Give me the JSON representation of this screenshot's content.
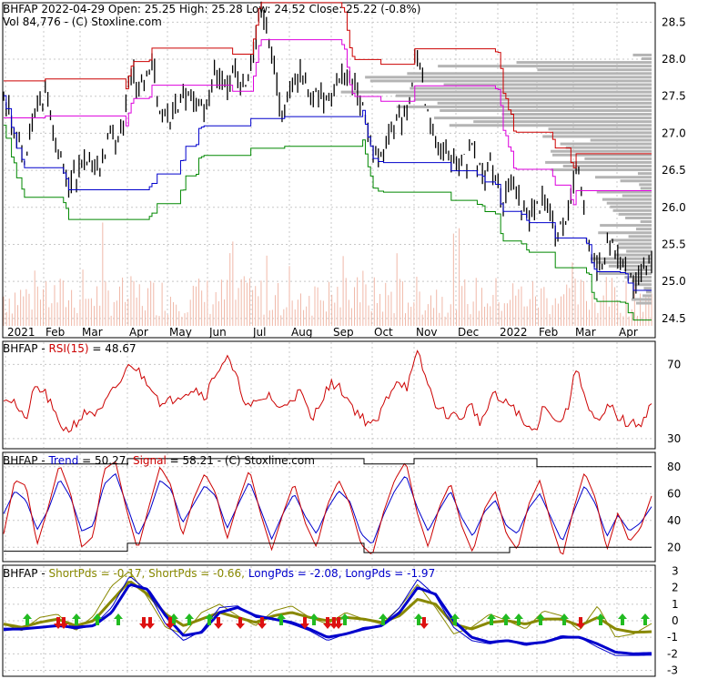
{
  "header": {
    "line1": "BHFAP  2022-04-29 Open: 25.25  High: 25.28  Low: 24.52  Close: 25.22 (-0.8%)",
    "line2": "Vol 84,776   - (C) Stoxline.com"
  },
  "colors": {
    "price": "#000000",
    "volume": "#f0b8a8",
    "profile": "#b4b4b4",
    "red": "#cc0000",
    "magenta": "#dd00dd",
    "blue": "#0000cc",
    "green": "#008800",
    "olive": "#888800",
    "grid": "#c8c8c8"
  },
  "panels": {
    "rsi": {
      "label_prefix": "BHFAP  - ",
      "label_name": "RSI(15)",
      "label_value": " = 48.67"
    },
    "trend": {
      "label_prefix": "BHFAP  - ",
      "trend_label": "Trend",
      "trend_value": " = 50.27, ",
      "signal_label": "Signal",
      "signal_value": " = 58.21",
      "suffix": "  - (C) Stoxline.com"
    },
    "pds": {
      "label_prefix": "BHFAP  - ",
      "items": [
        {
          "text": "ShortPds = -0.17, ",
          "color": "#888800"
        },
        {
          "text": "ShortPds = -0.66, ",
          "color": "#888800"
        },
        {
          "text": "LongPds = -2.08, ",
          "color": "#0000cc"
        },
        {
          "text": "LongPds = -1.97",
          "color": "#0000cc"
        }
      ]
    }
  },
  "chart_data": [
    {
      "type": "candlestick",
      "title": "BHFAP",
      "x_labels": [
        "2021",
        "Feb",
        "Mar",
        "Apr",
        "May",
        "Jun",
        "Jul",
        "Aug",
        "Sep",
        "Oct",
        "Nov",
        "Dec",
        "2022",
        "Feb",
        "Mar",
        "Apr"
      ],
      "y_ticks": [
        24.5,
        25.0,
        25.5,
        26.0,
        26.5,
        27.0,
        27.5,
        28.0,
        28.5
      ],
      "ylim": [
        24.4,
        28.75
      ],
      "close_series": [
        27.6,
        27.0,
        26.6,
        27.3,
        27.5,
        26.8,
        26.3,
        26.5,
        26.7,
        26.6,
        26.9,
        27.0,
        27.8,
        27.6,
        27.9,
        27.1,
        27.3,
        27.6,
        27.4,
        27.3,
        27.9,
        27.6,
        27.8,
        27.7,
        28.6,
        28.3,
        27.3,
        27.6,
        27.8,
        27.4,
        27.5,
        27.6,
        27.9,
        27.7,
        27.3,
        26.7,
        26.8,
        27.2,
        27.3,
        28.1,
        27.2,
        26.8,
        26.6,
        26.5,
        26.8,
        26.4,
        26.6,
        26.1,
        26.3,
        26.0,
        25.9,
        26.2,
        25.6,
        25.9,
        26.7,
        25.5,
        25.1,
        25.6,
        25.3,
        25.0,
        25.1,
        25.22
      ],
      "grid": true
    },
    {
      "type": "line",
      "title": "RSI(15)",
      "y_ticks": [
        30,
        70
      ],
      "ylim": [
        25,
        82
      ],
      "series": [
        {
          "name": "RSI(15)",
          "values": [
            53,
            50,
            39,
            58,
            54,
            40,
            34,
            40,
            45,
            43,
            53,
            61,
            71,
            64,
            58,
            47,
            52,
            55,
            57,
            53,
            66,
            74,
            61,
            47,
            49,
            54,
            45,
            52,
            55,
            39,
            53,
            60,
            55,
            46,
            40,
            37,
            51,
            62,
            58,
            76,
            58,
            45,
            43,
            41,
            48,
            38,
            54,
            49,
            48,
            37,
            34,
            50,
            38,
            44,
            70,
            46,
            37,
            48,
            41,
            37,
            39,
            48.67
          ]
        }
      ]
    },
    {
      "type": "line",
      "title": "Trend / Signal",
      "y_ticks": [
        20,
        40,
        60,
        80
      ],
      "ylim": [
        10,
        90
      ],
      "series": [
        {
          "name": "Trend",
          "values": [
            45,
            62,
            55,
            33,
            48,
            71,
            57,
            32,
            36,
            67,
            75,
            52,
            28,
            45,
            70,
            63,
            38,
            52,
            66,
            58,
            34,
            52,
            69,
            48,
            26,
            45,
            60,
            43,
            30,
            49,
            62,
            54,
            30,
            22,
            44,
            62,
            74,
            50,
            32,
            48,
            62,
            42,
            28,
            46,
            55,
            36,
            30,
            49,
            60,
            42,
            24,
            46,
            66,
            52,
            28,
            44,
            32,
            38,
            50.27
          ]
        },
        {
          "name": "Signal",
          "values": [
            30,
            70,
            66,
            22,
            50,
            82,
            60,
            20,
            28,
            78,
            84,
            48,
            18,
            50,
            80,
            66,
            28,
            56,
            75,
            60,
            26,
            54,
            78,
            45,
            18,
            45,
            68,
            38,
            20,
            52,
            70,
            52,
            22,
            14,
            46,
            70,
            84,
            46,
            20,
            50,
            68,
            36,
            16,
            48,
            62,
            30,
            18,
            52,
            70,
            38,
            12,
            48,
            76,
            56,
            18,
            46,
            24,
            34,
            58.21
          ]
        }
      ]
    },
    {
      "type": "line",
      "title": "ShortPds / LongPds",
      "y_ticks": [
        3,
        2,
        1,
        0,
        -1,
        -2,
        -3
      ],
      "ylim": [
        -3.3,
        3.3
      ],
      "series": [
        {
          "name": "ShortPds",
          "values": [
            -0.2,
            -0.6,
            0.2,
            0.4,
            -0.6,
            0.3,
            2.1,
            3.0,
            1.4,
            -0.4,
            -0.8,
            0.5,
            1.0,
            0.3,
            -0.3,
            0.6,
            0.9,
            0.2,
            -0.2,
            0.5,
            0.1,
            -0.2,
            0.8,
            2.2,
            0.8,
            -0.8,
            -0.4,
            0.4,
            0.0,
            -0.5,
            0.6,
            0.3,
            -0.6,
            0.9,
            -1.0,
            -0.8,
            -0.17
          ]
        },
        {
          "name": "ShortPds",
          "values": [
            -0.2,
            -0.4,
            -0.1,
            0.1,
            -0.3,
            0.0,
            1.2,
            2.4,
            1.6,
            0.4,
            -0.3,
            0.1,
            0.5,
            0.2,
            -0.1,
            0.3,
            0.5,
            0.2,
            0.0,
            0.2,
            0.1,
            -0.1,
            0.3,
            1.3,
            1.0,
            -0.2,
            -0.5,
            -0.1,
            0.0,
            -0.2,
            0.1,
            0.1,
            -0.3,
            0.2,
            -0.5,
            -0.7,
            -0.66
          ]
        },
        {
          "name": "LongPds",
          "values": [
            -0.6,
            -0.5,
            -0.4,
            -0.3,
            -0.5,
            -0.3,
            0.8,
            2.7,
            1.8,
            -0.2,
            -1.2,
            -0.6,
            0.8,
            0.9,
            0.2,
            0.1,
            -0.2,
            -0.6,
            -1.2,
            -0.8,
            -0.4,
            -0.3,
            0.8,
            2.5,
            1.5,
            -0.4,
            -1.2,
            -1.4,
            -1.2,
            -1.5,
            -1.3,
            -0.9,
            -1.0,
            -1.6,
            -2.1,
            -2.1,
            -2.08
          ]
        },
        {
          "name": "LongPds",
          "values": [
            -0.5,
            -0.5,
            -0.4,
            -0.3,
            -0.4,
            -0.3,
            0.5,
            2.2,
            1.9,
            0.3,
            -0.9,
            -0.7,
            0.5,
            0.8,
            0.3,
            0.1,
            -0.1,
            -0.5,
            -1.0,
            -0.8,
            -0.5,
            -0.3,
            0.5,
            2.0,
            1.6,
            0.0,
            -1.0,
            -1.3,
            -1.2,
            -1.4,
            -1.3,
            -1.0,
            -1.0,
            -1.4,
            -1.9,
            -2.0,
            -1.97
          ]
        }
      ]
    }
  ]
}
